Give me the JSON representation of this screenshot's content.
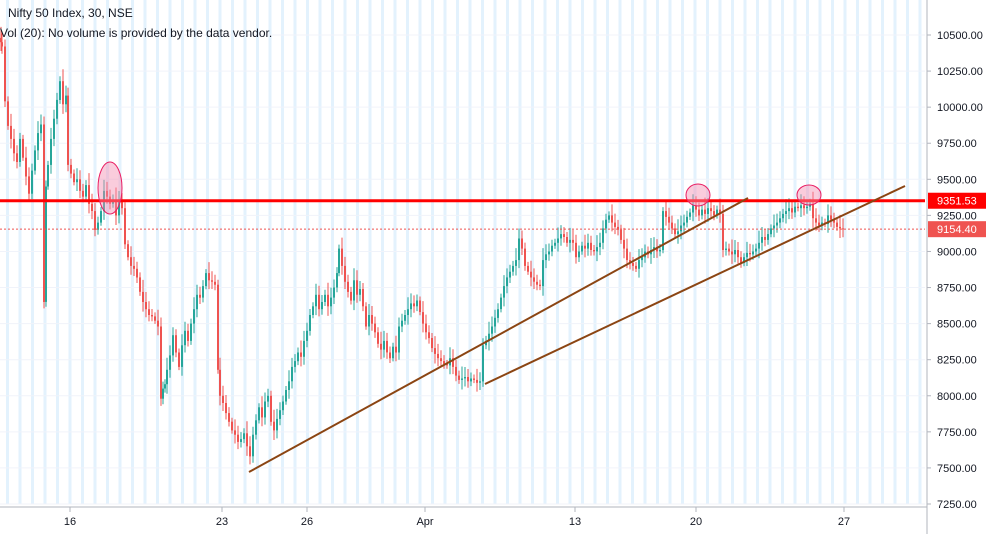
{
  "header": {
    "symbol_line": "Nifty 50 Index, 30, NSE",
    "volume_line": "Vol (20): No volume is provided by the data vendor."
  },
  "colors": {
    "up": "#26a69a",
    "down": "#ef5350",
    "resistance": "#ff0000",
    "trendline": "#8b4513",
    "highlight": "#f48fb1",
    "grid_band": "#e3f2fd",
    "last_price": "#ef5350"
  },
  "chart_data": {
    "type": "candlestick",
    "title": "Nifty 50 Index, 30, NSE",
    "ylim": [
      7230,
      10650
    ],
    "y_ticks": [
      10500,
      10250,
      10000,
      9750,
      9500,
      9250,
      9000,
      8750,
      8500,
      8250,
      8000,
      7750,
      7500,
      7250
    ],
    "y_tick_labels": [
      "10500.00",
      "10250.00",
      "10000.00",
      "9750.00",
      "9500.00",
      "9250.00",
      "9000.00",
      "8750.00",
      "8500.00",
      "8250.00",
      "8000.00",
      "7750.00",
      "7500.00",
      "7250.00"
    ],
    "x_tick_labels": [
      "16",
      "23",
      "26",
      "Apr",
      "13",
      "20",
      "27"
    ],
    "grid": true,
    "resistance": {
      "price": 9351.53,
      "label": "9351.53"
    },
    "last_price": {
      "price": 9154.4,
      "label": "9154.40"
    },
    "price_path": [
      [
        0,
        10480
      ],
      [
        1,
        10450
      ],
      [
        2,
        10420
      ],
      [
        5,
        10040
      ],
      [
        8,
        9870
      ],
      [
        11,
        9780
      ],
      [
        14,
        9680
      ],
      [
        17,
        9620
      ],
      [
        20,
        9780
      ],
      [
        23,
        9650
      ],
      [
        26,
        9520
      ],
      [
        29,
        9400
      ],
      [
        32,
        9560
      ],
      [
        35,
        9700
      ],
      [
        38,
        9820
      ],
      [
        41,
        9880
      ],
      [
        44,
        8650
      ],
      [
        46,
        9450
      ],
      [
        48,
        9600
      ],
      [
        51,
        9780
      ],
      [
        54,
        9920
      ],
      [
        57,
        10050
      ],
      [
        60,
        10180
      ],
      [
        63,
        10020
      ],
      [
        66,
        10080
      ],
      [
        68,
        9600
      ],
      [
        71,
        9540
      ],
      [
        74,
        9480
      ],
      [
        77,
        9500
      ],
      [
        80,
        9420
      ],
      [
        83,
        9380
      ],
      [
        86,
        9460
      ],
      [
        89,
        9330
      ],
      [
        92,
        9280
      ],
      [
        95,
        9150
      ],
      [
        98,
        9200
      ],
      [
        101,
        9280
      ],
      [
        104,
        9420
      ],
      [
        107,
        9380
      ],
      [
        110,
        9330
      ],
      [
        113,
        9360
      ],
      [
        116,
        9250
      ],
      [
        119,
        9350
      ],
      [
        122,
        9300
      ],
      [
        125,
        9050
      ],
      [
        128,
        8960
      ],
      [
        131,
        8900
      ],
      [
        134,
        8880
      ],
      [
        137,
        8820
      ],
      [
        140,
        8720
      ],
      [
        143,
        8650
      ],
      [
        146,
        8600
      ],
      [
        149,
        8560
      ],
      [
        152,
        8550
      ],
      [
        155,
        8520
      ],
      [
        158,
        8480
      ],
      [
        161,
        7980
      ],
      [
        163,
        8050
      ],
      [
        165,
        8080
      ],
      [
        167,
        8180
      ],
      [
        170,
        8280
      ],
      [
        173,
        8420
      ],
      [
        176,
        8300
      ],
      [
        179,
        8200
      ],
      [
        182,
        8350
      ],
      [
        185,
        8450
      ],
      [
        188,
        8380
      ],
      [
        191,
        8500
      ],
      [
        194,
        8600
      ],
      [
        197,
        8700
      ],
      [
        200,
        8680
      ],
      [
        203,
        8760
      ],
      [
        206,
        8850
      ],
      [
        209,
        8800
      ],
      [
        212,
        8790
      ],
      [
        215,
        8770
      ],
      [
        218,
        8180
      ],
      [
        220,
        8000
      ],
      [
        223,
        7950
      ],
      [
        226,
        7880
      ],
      [
        229,
        7820
      ],
      [
        232,
        7760
      ],
      [
        235,
        7730
      ],
      [
        238,
        7680
      ],
      [
        241,
        7700
      ],
      [
        244,
        7740
      ],
      [
        247,
        7650
      ],
      [
        250,
        7580
      ],
      [
        253,
        7730
      ],
      [
        256,
        7830
      ],
      [
        259,
        7920
      ],
      [
        262,
        7850
      ],
      [
        265,
        7960
      ],
      [
        268,
        8000
      ],
      [
        271,
        7820
      ],
      [
        274,
        7760
      ],
      [
        277,
        7840
      ],
      [
        280,
        7900
      ],
      [
        283,
        7960
      ],
      [
        286,
        8040
      ],
      [
        289,
        8100
      ],
      [
        292,
        8200
      ],
      [
        295,
        8240
      ],
      [
        298,
        8300
      ],
      [
        301,
        8270
      ],
      [
        304,
        8380
      ],
      [
        307,
        8450
      ],
      [
        310,
        8560
      ],
      [
        313,
        8620
      ],
      [
        316,
        8700
      ],
      [
        319,
        8600
      ],
      [
        322,
        8650
      ],
      [
        325,
        8700
      ],
      [
        328,
        8620
      ],
      [
        331,
        8680
      ],
      [
        334,
        8750
      ],
      [
        337,
        8850
      ],
      [
        339,
        9020
      ],
      [
        342,
        8900
      ],
      [
        345,
        8790
      ],
      [
        348,
        8720
      ],
      [
        351,
        8660
      ],
      [
        354,
        8800
      ],
      [
        357,
        8700
      ],
      [
        360,
        8740
      ],
      [
        363,
        8620
      ],
      [
        366,
        8480
      ],
      [
        369,
        8560
      ],
      [
        372,
        8500
      ],
      [
        375,
        8440
      ],
      [
        378,
        8360
      ],
      [
        381,
        8320
      ],
      [
        384,
        8380
      ],
      [
        387,
        8300
      ],
      [
        390,
        8260
      ],
      [
        393,
        8340
      ],
      [
        396,
        8300
      ],
      [
        399,
        8480
      ],
      [
        402,
        8520
      ],
      [
        405,
        8560
      ],
      [
        408,
        8600
      ],
      [
        411,
        8640
      ],
      [
        414,
        8620
      ],
      [
        417,
        8660
      ],
      [
        420,
        8580
      ],
      [
        423,
        8500
      ],
      [
        426,
        8440
      ],
      [
        429,
        8400
      ],
      [
        432,
        8330
      ],
      [
        435,
        8290
      ],
      [
        438,
        8260
      ],
      [
        441,
        8240
      ],
      [
        444,
        8220
      ],
      [
        447,
        8210
      ],
      [
        450,
        8260
      ],
      [
        453,
        8200
      ],
      [
        456,
        8140
      ],
      [
        459,
        8110
      ],
      [
        462,
        8120
      ],
      [
        465,
        8130
      ],
      [
        468,
        8100
      ],
      [
        471,
        8120
      ],
      [
        474,
        8110
      ],
      [
        477,
        8090
      ],
      [
        480,
        8100
      ],
      [
        483,
        8350
      ],
      [
        486,
        8380
      ],
      [
        489,
        8430
      ],
      [
        492,
        8480
      ],
      [
        495,
        8540
      ],
      [
        498,
        8600
      ],
      [
        501,
        8680
      ],
      [
        504,
        8760
      ],
      [
        507,
        8820
      ],
      [
        510,
        8860
      ],
      [
        513,
        8900
      ],
      [
        516,
        8940
      ],
      [
        519,
        9090
      ],
      [
        522,
        9020
      ],
      [
        525,
        8900
      ],
      [
        528,
        8860
      ],
      [
        531,
        8820
      ],
      [
        534,
        8790
      ],
      [
        537,
        8770
      ],
      [
        540,
        8760
      ],
      [
        543,
        8940
      ],
      [
        546,
        8980
      ],
      [
        549,
        9000
      ],
      [
        552,
        9040
      ],
      [
        555,
        9060
      ],
      [
        558,
        9090
      ],
      [
        561,
        9120
      ],
      [
        564,
        9100
      ],
      [
        567,
        9060
      ],
      [
        570,
        9080
      ],
      [
        573,
        9060
      ],
      [
        576,
        8960
      ],
      [
        579,
        9000
      ],
      [
        582,
        9040
      ],
      [
        585,
        9020
      ],
      [
        588,
        9060
      ],
      [
        591,
        9010
      ],
      [
        594,
        9000
      ],
      [
        597,
        9030
      ],
      [
        600,
        9060
      ],
      [
        603,
        9160
      ],
      [
        606,
        9220
      ],
      [
        609,
        9250
      ],
      [
        612,
        9200
      ],
      [
        615,
        9170
      ],
      [
        618,
        9150
      ],
      [
        621,
        9080
      ],
      [
        624,
        9020
      ],
      [
        627,
        8940
      ],
      [
        630,
        8920
      ],
      [
        633,
        8900
      ],
      [
        636,
        8880
      ],
      [
        639,
        8940
      ],
      [
        642,
        8960
      ],
      [
        645,
        9000
      ],
      [
        648,
        8980
      ],
      [
        651,
        9010
      ],
      [
        654,
        9030
      ],
      [
        657,
        9000
      ],
      [
        660,
        9010
      ],
      [
        663,
        9280
      ],
      [
        666,
        9240
      ],
      [
        669,
        9200
      ],
      [
        672,
        9160
      ],
      [
        675,
        9120
      ],
      [
        678,
        9140
      ],
      [
        681,
        9180
      ],
      [
        684,
        9200
      ],
      [
        687,
        9240
      ],
      [
        690,
        9270
      ],
      [
        693,
        9320
      ],
      [
        696,
        9290
      ],
      [
        699,
        9250
      ],
      [
        702,
        9290
      ],
      [
        705,
        9260
      ],
      [
        708,
        9300
      ],
      [
        711,
        9280
      ],
      [
        714,
        9250
      ],
      [
        717,
        9290
      ],
      [
        720,
        9260
      ],
      [
        723,
        9010
      ],
      [
        726,
        9020
      ],
      [
        729,
        9000
      ],
      [
        732,
        8980
      ],
      [
        735,
        9010
      ],
      [
        738,
        8960
      ],
      [
        741,
        8920
      ],
      [
        744,
        8960
      ],
      [
        747,
        8990
      ],
      [
        750,
        8980
      ],
      [
        753,
        9000
      ],
      [
        756,
        9020
      ],
      [
        759,
        9060
      ],
      [
        762,
        9100
      ],
      [
        765,
        9080
      ],
      [
        768,
        9120
      ],
      [
        771,
        9160
      ],
      [
        774,
        9180
      ],
      [
        777,
        9200
      ],
      [
        780,
        9230
      ],
      [
        783,
        9260
      ],
      [
        786,
        9280
      ],
      [
        789,
        9300
      ],
      [
        792,
        9270
      ],
      [
        795,
        9310
      ],
      [
        798,
        9300
      ],
      [
        801,
        9320
      ],
      [
        804,
        9300
      ],
      [
        807,
        9310
      ],
      [
        810,
        9330
      ],
      [
        813,
        9230
      ],
      [
        816,
        9200
      ],
      [
        819,
        9180
      ],
      [
        822,
        9200
      ],
      [
        825,
        9190
      ],
      [
        828,
        9250
      ],
      [
        831,
        9220
      ],
      [
        834,
        9200
      ],
      [
        837,
        9170
      ],
      [
        840,
        9160
      ],
      [
        843,
        9154
      ]
    ]
  }
}
